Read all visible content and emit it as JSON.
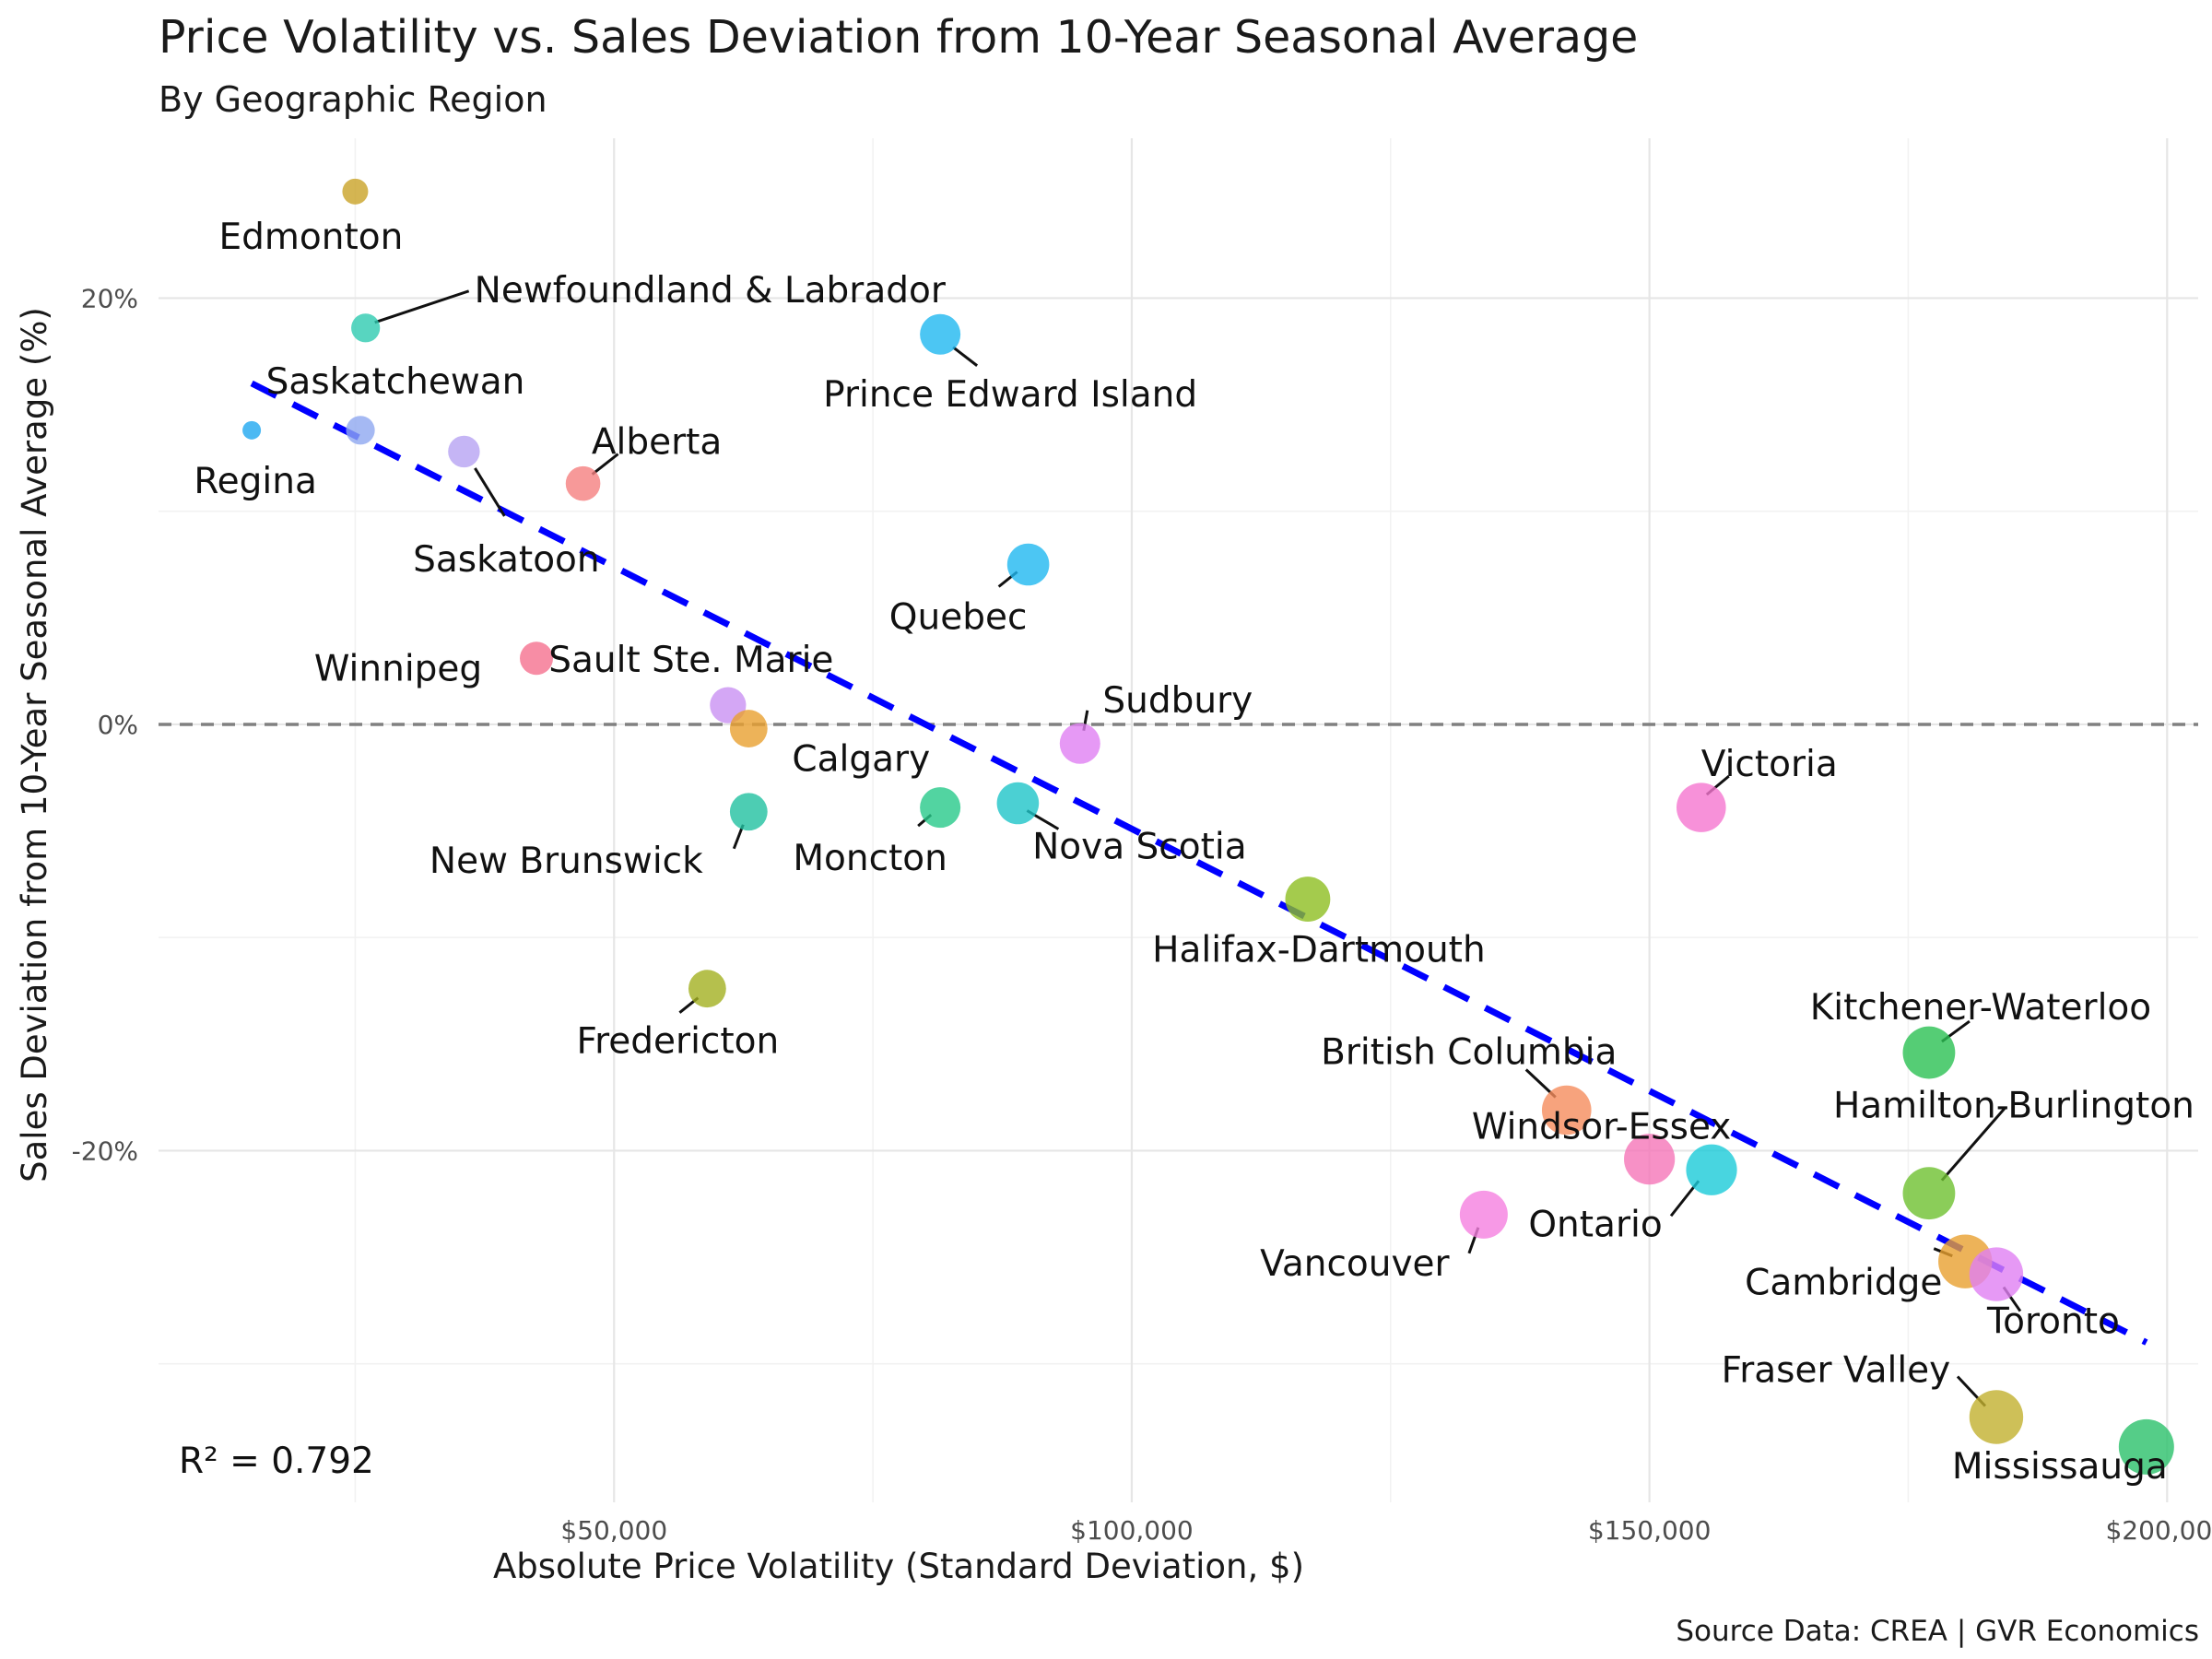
{
  "title": "Price Volatility vs. Sales Deviation from 10-Year Seasonal Average",
  "subtitle": "By Geographic Region",
  "caption": "Source Data: CREA | GVR Economics",
  "annotation": "R² = 0.792",
  "chart_data": {
    "type": "scatter",
    "xlabel": "Absolute Price Volatility (Standard Deviation, $)",
    "ylabel": "Sales Deviation from 10-Year Seasonal Average (%)",
    "xlim": [
      6000,
      203000
    ],
    "ylim": [
      -36.5,
      27.5
    ],
    "x_ticks": [
      {
        "value": 50000,
        "label": "$50,000"
      },
      {
        "value": 100000,
        "label": "$100,000"
      },
      {
        "value": 150000,
        "label": "$150,000"
      },
      {
        "value": 200000,
        "label": "$200,000"
      }
    ],
    "y_ticks": [
      {
        "value": 20,
        "label": "20%"
      },
      {
        "value": 0,
        "label": "0%"
      },
      {
        "value": -20,
        "label": "-20%"
      }
    ],
    "reference_line": {
      "y": 0,
      "style": "dashed",
      "color": "#808080"
    },
    "trend_line": {
      "x0": 15000,
      "y0": 16.0,
      "x1": 198000,
      "y1": -29.0,
      "color": "#0000ff",
      "style": "dashed"
    },
    "grid": true,
    "legend": "none",
    "points": [
      {
        "name": "Edmonton",
        "x": 25000,
        "y": 25.0,
        "size": 1,
        "color": "#C9A227"
      },
      {
        "name": "Newfoundland & Labrador",
        "x": 26000,
        "y": 18.6,
        "size": 1.2,
        "color": "#2ECBB0"
      },
      {
        "name": "Saskatchewan",
        "x": 25500,
        "y": 13.8,
        "size": 1.2,
        "color": "#8FA8F0"
      },
      {
        "name": "Regina",
        "x": 15000,
        "y": 13.8,
        "size": 0.5,
        "color": "#1FA8F0"
      },
      {
        "name": "Saskatoon",
        "x": 35500,
        "y": 12.8,
        "size": 1.4,
        "color": "#B6A2F2"
      },
      {
        "name": "Alberta",
        "x": 47000,
        "y": 11.3,
        "size": 1.6,
        "color": "#F57F7F"
      },
      {
        "name": "Prince Edward Island",
        "x": 81500,
        "y": 18.3,
        "size": 2,
        "color": "#1FB8F0"
      },
      {
        "name": "Quebec",
        "x": 90000,
        "y": 7.5,
        "size": 2.1,
        "color": "#1FB8F0"
      },
      {
        "name": "Winnipeg",
        "x": 42500,
        "y": 3.1,
        "size": 1.5,
        "color": "#F5708F"
      },
      {
        "name": "Sault Ste. Marie",
        "x": 61000,
        "y": 0.9,
        "size": 1.7,
        "color": "#C991F2"
      },
      {
        "name": "Calgary",
        "x": 63000,
        "y": -0.2,
        "size": 1.8,
        "color": "#E9A030"
      },
      {
        "name": "Sudbury",
        "x": 95000,
        "y": -0.9,
        "size": 2,
        "color": "#E07FF2"
      },
      {
        "name": "New Brunswick",
        "x": 63000,
        "y": -4.1,
        "size": 1.8,
        "color": "#20C0A0"
      },
      {
        "name": "Moncton",
        "x": 81500,
        "y": -3.9,
        "size": 2,
        "color": "#27C98A"
      },
      {
        "name": "Nova Scotia",
        "x": 89000,
        "y": -3.7,
        "size": 2.1,
        "color": "#1EC4C8"
      },
      {
        "name": "Halifax-Dartmouth",
        "x": 117000,
        "y": -8.2,
        "size": 2.3,
        "color": "#8DBE20"
      },
      {
        "name": "Fredericton",
        "x": 59000,
        "y": -12.4,
        "size": 1.8,
        "color": "#A3B020"
      },
      {
        "name": "Victoria",
        "x": 155000,
        "y": -3.9,
        "size": 2.6,
        "color": "#F575D0"
      },
      {
        "name": "Kitchener-Waterloo",
        "x": 177000,
        "y": -15.4,
        "size": 2.8,
        "color": "#2BC152"
      },
      {
        "name": "British Columbia",
        "x": 142000,
        "y": -18.1,
        "size": 2.6,
        "color": "#F58C5C"
      },
      {
        "name": "Windsor-Essex",
        "x": 150000,
        "y": -20.4,
        "size": 2.7,
        "color": "#F575B8"
      },
      {
        "name": "Ontario",
        "x": 156000,
        "y": -20.9,
        "size": 2.7,
        "color": "#1ACBD8"
      },
      {
        "name": "Hamilton-Burlington",
        "x": 177000,
        "y": -22.0,
        "size": 2.8,
        "color": "#6EC12F"
      },
      {
        "name": "Vancouver",
        "x": 134000,
        "y": -23.0,
        "size": 2.5,
        "color": "#F57FE0"
      },
      {
        "name": "Cambridge",
        "x": 180500,
        "y": -25.2,
        "size": 2.9,
        "color": "#E9A030"
      },
      {
        "name": "Toronto",
        "x": 183500,
        "y": -25.8,
        "size": 2.9,
        "color": "#E07FF2"
      },
      {
        "name": "Fraser Valley",
        "x": 183500,
        "y": -32.5,
        "size": 2.9,
        "color": "#C2B02E"
      },
      {
        "name": "Mississauga",
        "x": 198000,
        "y": -33.9,
        "size": 3,
        "color": "#2BC16A"
      }
    ]
  }
}
